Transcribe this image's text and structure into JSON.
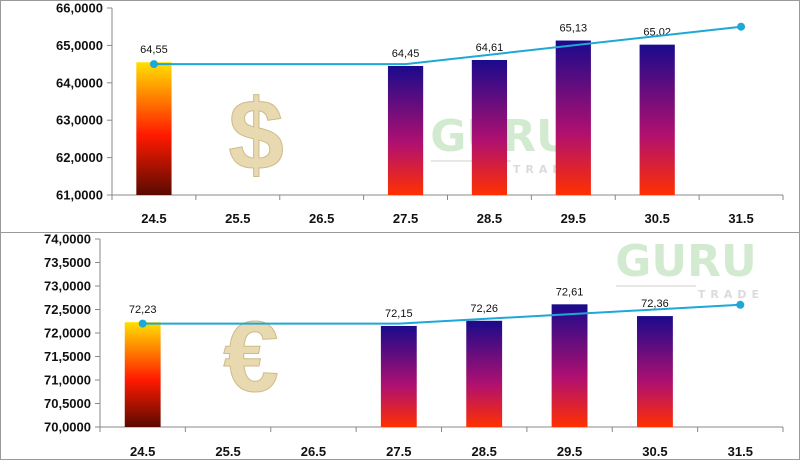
{
  "chart_data": [
    {
      "type": "bar",
      "title": "",
      "currency_symbol": "$",
      "watermark": {
        "main": "GURU",
        "sub": "TRADE"
      },
      "categories": [
        "24.5",
        "25.5",
        "26.5",
        "27.5",
        "28.5",
        "29.5",
        "30.5",
        "31.5"
      ],
      "series": [
        {
          "kind": "bar",
          "values": [
            64.55,
            null,
            null,
            64.45,
            64.61,
            65.13,
            65.02,
            null
          ],
          "labels": [
            "64,55",
            "",
            "",
            "64,45",
            "64,61",
            "65,13",
            "65,02",
            ""
          ]
        },
        {
          "kind": "line",
          "points": [
            {
              "x": "24.5",
              "y": 64.5
            },
            {
              "x": "27.5",
              "y": 64.5
            },
            {
              "x": "31.5",
              "y": 65.5
            }
          ]
        }
      ],
      "ylim": [
        61,
        66
      ],
      "yticks": [
        "61,0000",
        "62,0000",
        "63,0000",
        "64,0000",
        "65,0000",
        "66,0000"
      ],
      "xlabel": "",
      "ylabel": "",
      "grid": false,
      "colors": {
        "first_bar": [
          "#ffe000",
          "#ff1a00",
          "#5a0a00"
        ],
        "other_bars": [
          "#1a0a8c",
          "#b01070",
          "#ff3000"
        ],
        "line": "#1da8d6"
      }
    },
    {
      "type": "bar",
      "title": "",
      "currency_symbol": "€",
      "watermark": {
        "main": "GURU",
        "sub": "TRADE"
      },
      "categories": [
        "24.5",
        "25.5",
        "26.5",
        "27.5",
        "28.5",
        "29.5",
        "30.5",
        "31.5"
      ],
      "series": [
        {
          "kind": "bar",
          "values": [
            72.23,
            null,
            null,
            72.15,
            72.26,
            72.61,
            72.36,
            null
          ],
          "labels": [
            "72,23",
            "",
            "",
            "72,15",
            "72,26",
            "72,61",
            "72,36",
            ""
          ]
        },
        {
          "kind": "line",
          "points": [
            {
              "x": "24.5",
              "y": 72.2
            },
            {
              "x": "27.5",
              "y": 72.2
            },
            {
              "x": "31.5",
              "y": 72.6
            }
          ]
        }
      ],
      "ylim": [
        70,
        74
      ],
      "yticks": [
        "70,0000",
        "70,5000",
        "71,0000",
        "71,5000",
        "72,0000",
        "72,5000",
        "73,0000",
        "73,5000",
        "74,0000"
      ],
      "xlabel": "",
      "ylabel": "",
      "grid": false,
      "colors": {
        "first_bar": [
          "#ffe000",
          "#ff1a00",
          "#5a0a00"
        ],
        "other_bars": [
          "#1a0a8c",
          "#b01070",
          "#ff3000"
        ],
        "line": "#1da8d6"
      }
    }
  ]
}
